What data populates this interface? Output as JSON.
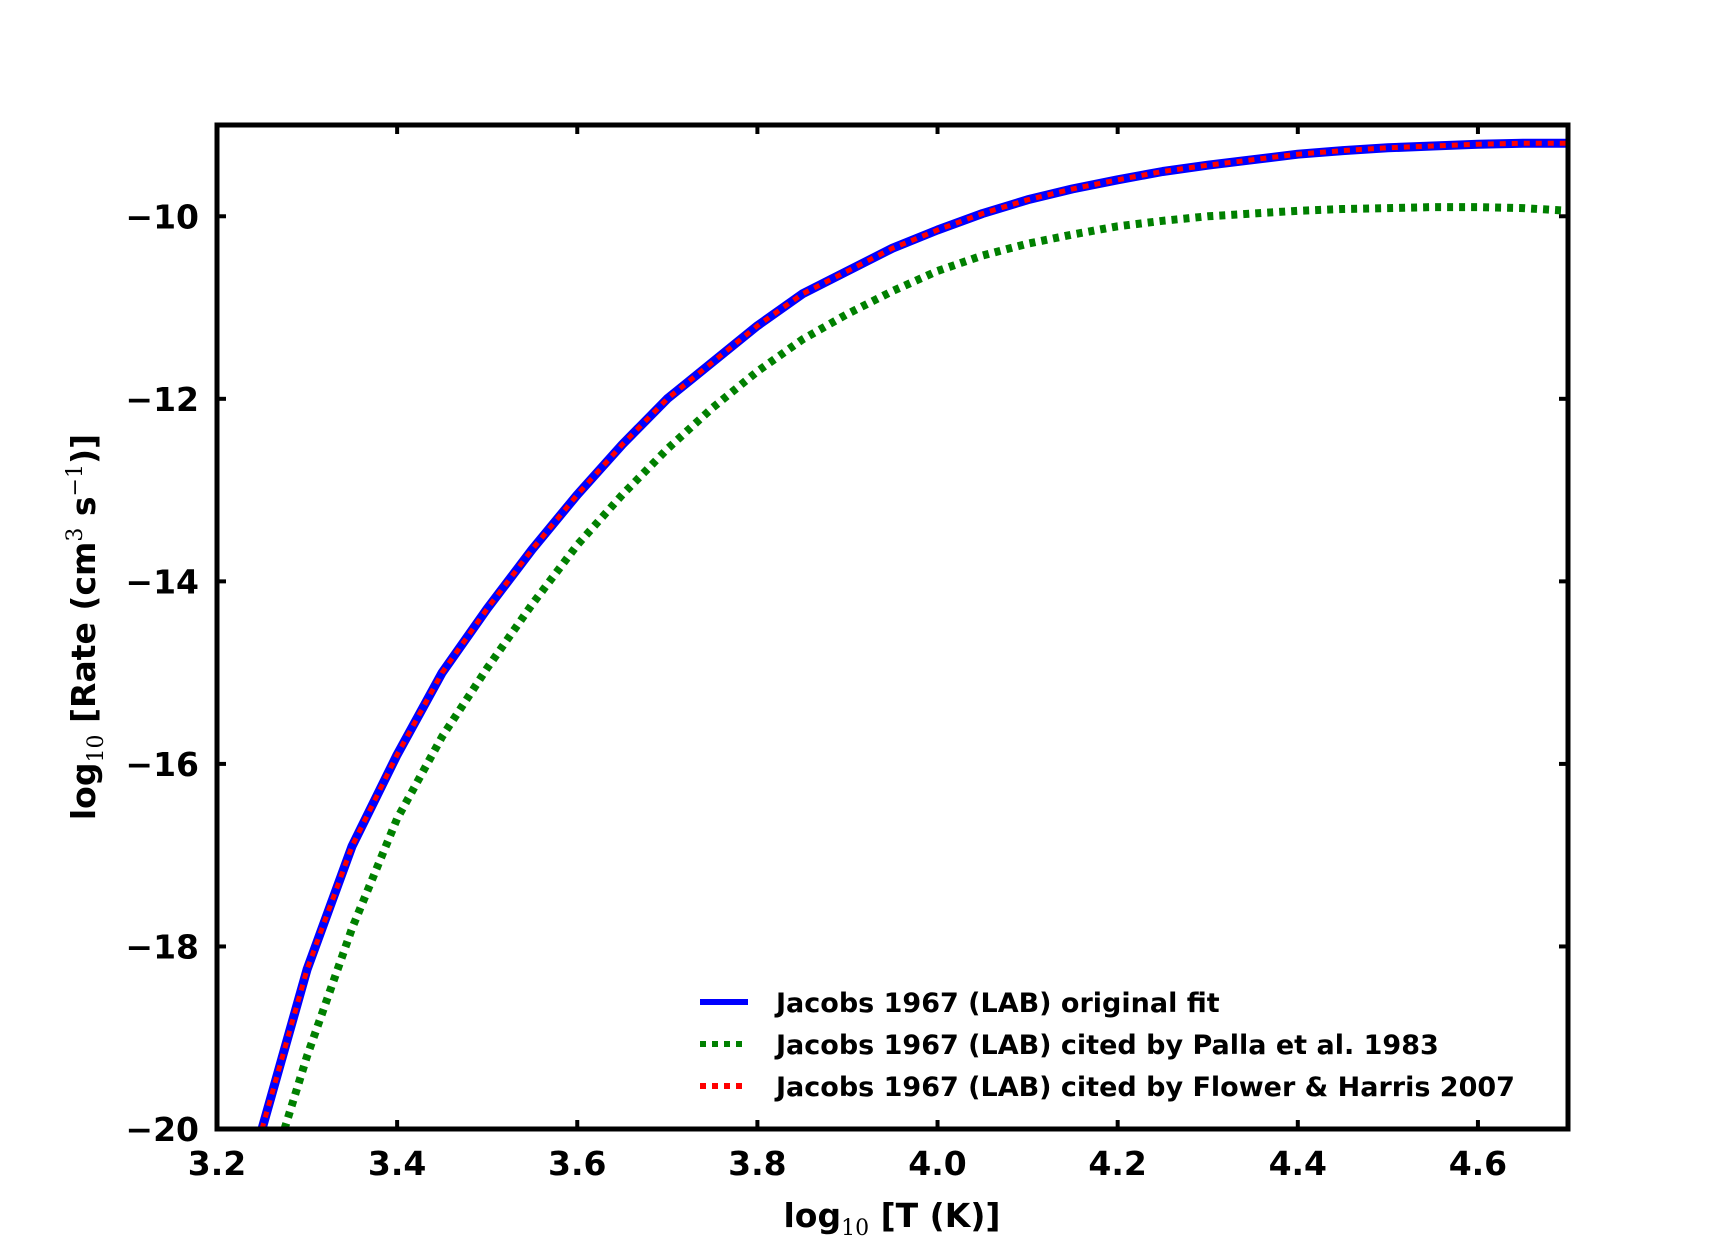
{
  "chart_data": {
    "type": "line",
    "xlabel": {
      "prefix": "log",
      "sub": "10",
      "suffix": " [T (K)]"
    },
    "ylabel": {
      "prefix": "log",
      "sub": "10",
      "middle1": " [Rate (cm",
      "sup1": "3",
      "middle2": " s",
      "sup2": "−1",
      "suffix": ")]"
    },
    "xlim": [
      3.2,
      4.7
    ],
    "ylim": [
      -20,
      -9
    ],
    "x_ticks": [
      3.2,
      3.4,
      3.6,
      3.8,
      4.0,
      4.2,
      4.4,
      4.6
    ],
    "x_tick_labels": [
      "3.2",
      "3.4",
      "3.6",
      "3.8",
      "4.0",
      "4.2",
      "4.4",
      "4.6"
    ],
    "y_ticks": [
      -20,
      -18,
      -16,
      -14,
      -12,
      -10
    ],
    "y_tick_labels": [
      "−20",
      "−18",
      "−16",
      "−14",
      "−12",
      "−10"
    ],
    "grid": false,
    "legend_placement": "lower-right",
    "series": [
      {
        "name": "Jacobs 1967 (LAB) original fit",
        "color": "#0000ff",
        "style": "solid",
        "x": [
          3.25,
          3.3,
          3.35,
          3.4,
          3.45,
          3.5,
          3.55,
          3.6,
          3.65,
          3.7,
          3.75,
          3.8,
          3.85,
          3.9,
          3.95,
          4.0,
          4.05,
          4.1,
          4.15,
          4.2,
          4.25,
          4.3,
          4.35,
          4.4,
          4.45,
          4.5,
          4.55,
          4.6,
          4.65,
          4.7
        ],
        "y": [
          -20.0,
          -18.25,
          -16.9,
          -15.9,
          -15.0,
          -14.3,
          -13.65,
          -13.05,
          -12.5,
          -12.0,
          -11.6,
          -11.2,
          -10.85,
          -10.6,
          -10.35,
          -10.15,
          -9.97,
          -9.82,
          -9.7,
          -9.6,
          -9.51,
          -9.44,
          -9.38,
          -9.32,
          -9.28,
          -9.25,
          -9.23,
          -9.21,
          -9.2,
          -9.2
        ]
      },
      {
        "name": "Jacobs 1967 (LAB) cited by Palla et al. 1983",
        "color": "#008000",
        "style": "dotted",
        "x": [
          3.275,
          3.3,
          3.35,
          3.4,
          3.45,
          3.5,
          3.55,
          3.6,
          3.65,
          3.7,
          3.75,
          3.8,
          3.85,
          3.9,
          3.95,
          4.0,
          4.05,
          4.1,
          4.15,
          4.2,
          4.25,
          4.3,
          4.35,
          4.4,
          4.45,
          4.5,
          4.55,
          4.6,
          4.65,
          4.7
        ],
        "y": [
          -20.0,
          -19.2,
          -17.8,
          -16.6,
          -15.7,
          -14.95,
          -14.25,
          -13.6,
          -13.05,
          -12.55,
          -12.1,
          -11.7,
          -11.35,
          -11.07,
          -10.82,
          -10.6,
          -10.43,
          -10.3,
          -10.2,
          -10.11,
          -10.05,
          -10.0,
          -9.97,
          -9.94,
          -9.92,
          -9.91,
          -9.9,
          -9.9,
          -9.91,
          -9.94
        ]
      },
      {
        "name": "Jacobs 1967 (LAB) cited by Flower & Harris 2007",
        "color": "#ff0000",
        "style": "dotted",
        "x": [
          3.25,
          3.3,
          3.35,
          3.4,
          3.45,
          3.5,
          3.55,
          3.6,
          3.65,
          3.7,
          3.75,
          3.8,
          3.85,
          3.9,
          3.95,
          4.0,
          4.05,
          4.1,
          4.15,
          4.2,
          4.25,
          4.3,
          4.35,
          4.4,
          4.45,
          4.5,
          4.55,
          4.6,
          4.65,
          4.7
        ],
        "y": [
          -20.0,
          -18.25,
          -16.9,
          -15.9,
          -15.0,
          -14.3,
          -13.65,
          -13.05,
          -12.5,
          -12.0,
          -11.6,
          -11.2,
          -10.85,
          -10.6,
          -10.35,
          -10.15,
          -9.97,
          -9.82,
          -9.7,
          -9.6,
          -9.51,
          -9.44,
          -9.38,
          -9.32,
          -9.28,
          -9.25,
          -9.23,
          -9.21,
          -9.2,
          -9.2
        ]
      }
    ]
  }
}
